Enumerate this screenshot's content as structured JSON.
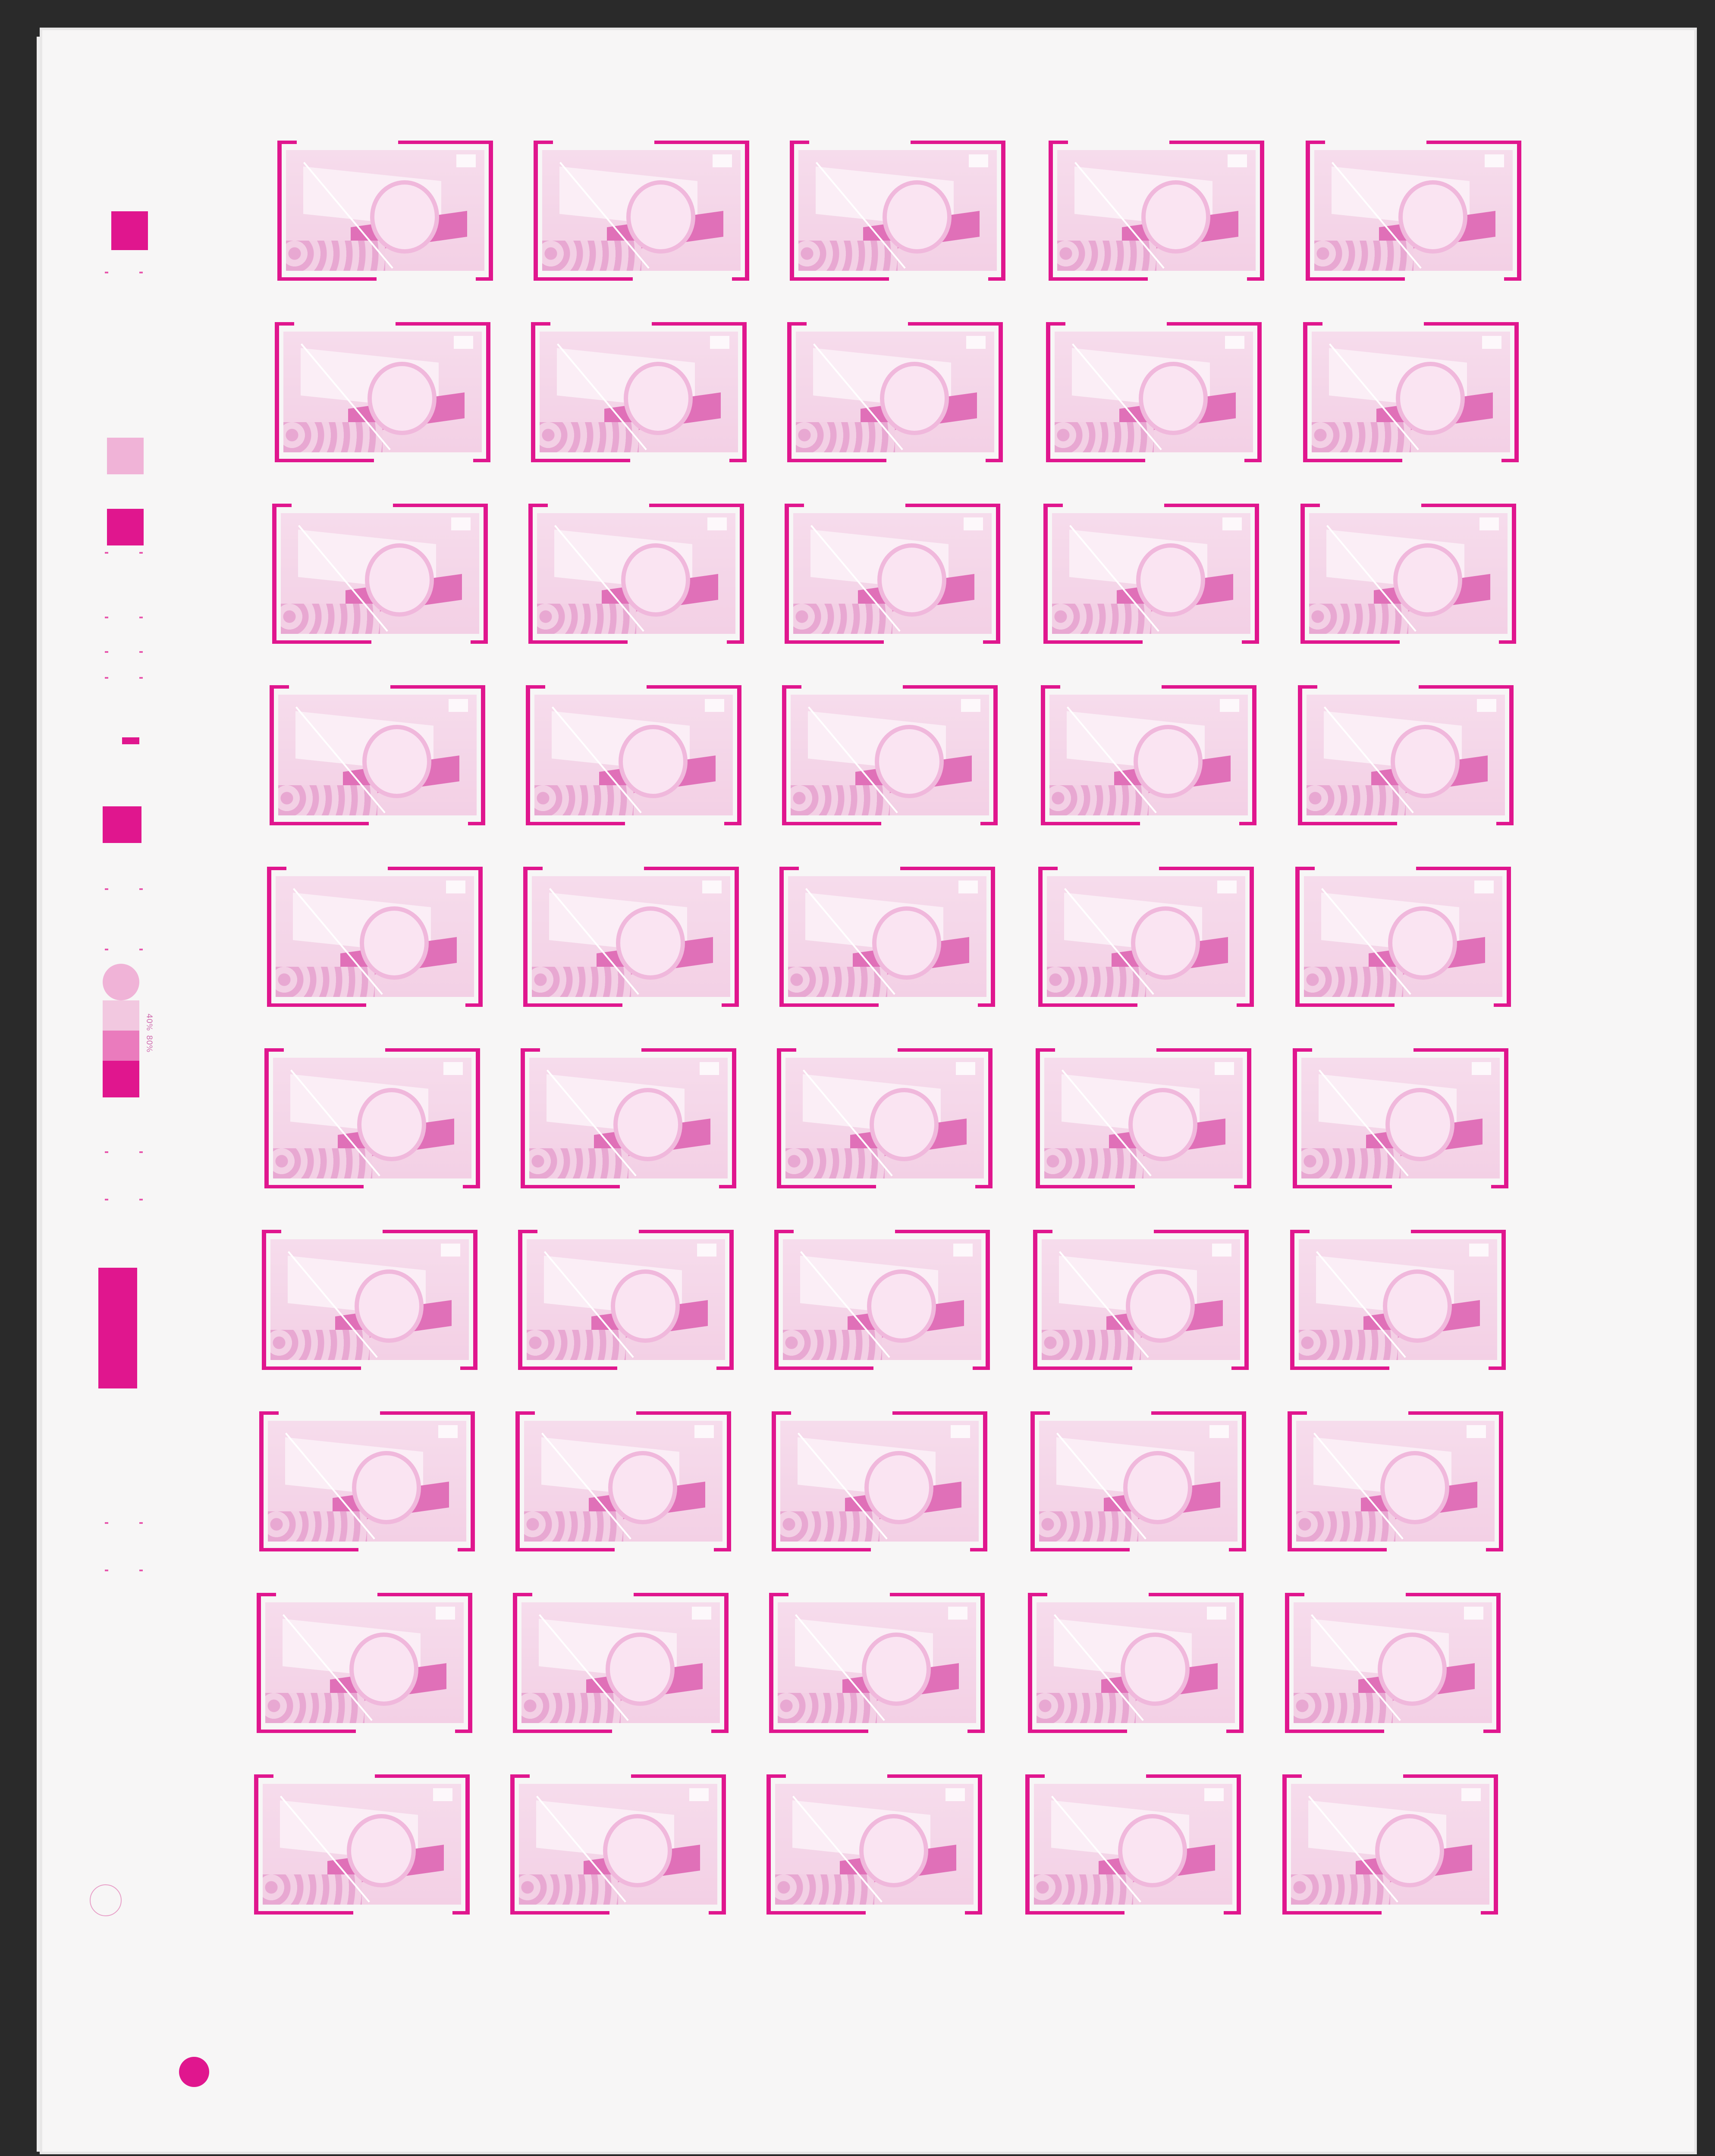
{
  "sheet": {
    "rows": 10,
    "columns": 5,
    "ink_color": "#e0168e",
    "paper_color": "#f7f6f6",
    "stamp_design": "flag-with-national-emblem-and-crowd"
  },
  "color_bar": {
    "tint_labels": [
      "40%",
      "80%"
    ]
  }
}
